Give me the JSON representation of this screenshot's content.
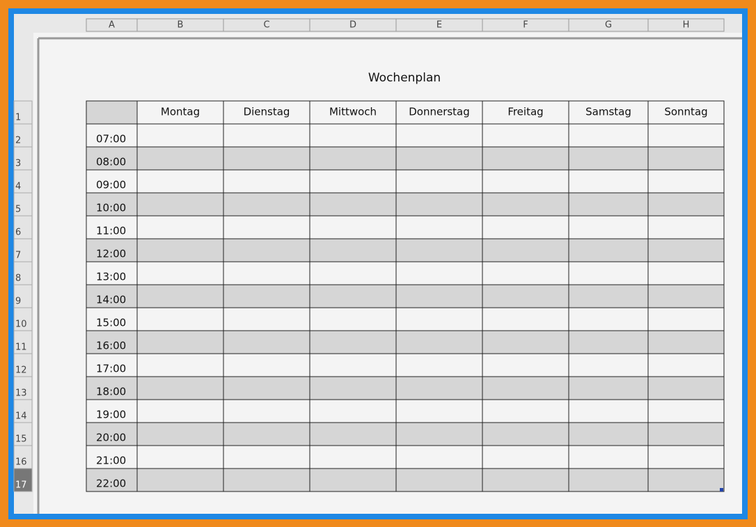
{
  "column_headers": [
    "A",
    "B",
    "C",
    "D",
    "E",
    "F",
    "G",
    "H"
  ],
  "row_headers": [
    "1",
    "2",
    "3",
    "4",
    "5",
    "6",
    "7",
    "8",
    "9",
    "10",
    "11",
    "12",
    "13",
    "14",
    "15",
    "16",
    "17"
  ],
  "title": "Wochenplan",
  "table": {
    "header": [
      "Montag",
      "Dienstag",
      "Mittwoch",
      "Donnerstag",
      "Freitag",
      "Samstag",
      "Sonntag"
    ],
    "times": [
      "07:00",
      "08:00",
      "09:00",
      "10:00",
      "11:00",
      "12:00",
      "13:00",
      "14:00",
      "15:00",
      "16:00",
      "17:00",
      "18:00",
      "19:00",
      "20:00",
      "21:00",
      "22:00"
    ]
  }
}
